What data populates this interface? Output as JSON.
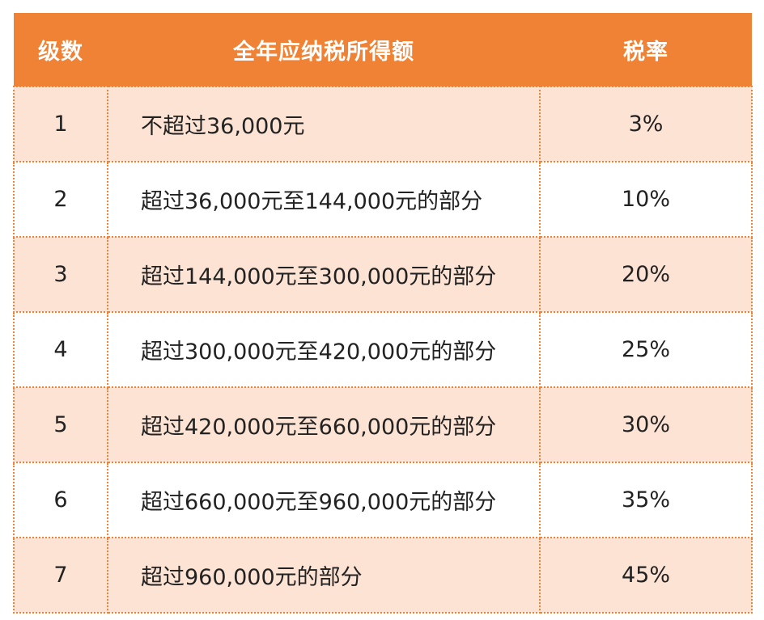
{
  "table": {
    "headers": [
      "级数",
      "全年应纳税所得额",
      "税率"
    ],
    "rows": [
      {
        "level": "1",
        "range": "不超过36,000元",
        "rate": "3%"
      },
      {
        "level": "2",
        "range": "超过36,000元至144,000元的部分",
        "rate": "10%"
      },
      {
        "level": "3",
        "range": "超过144,000元至300,000元的部分",
        "rate": "20%"
      },
      {
        "level": "4",
        "range": "超过300,000元至420,000元的部分",
        "rate": "25%"
      },
      {
        "level": "5",
        "range": "超过420,000元至660,000元的部分",
        "rate": "30%"
      },
      {
        "level": "6",
        "range": "超过660,000元至960,000元的部分",
        "rate": "35%"
      },
      {
        "level": "7",
        "range": "超过960,000元的部分",
        "rate": "45%"
      }
    ]
  },
  "colors": {
    "header_bg": "#ef8234",
    "header_text": "#ffffff",
    "row_shaded": "#fde3d4",
    "row_plain": "#ffffff",
    "border": "#ef8234"
  }
}
